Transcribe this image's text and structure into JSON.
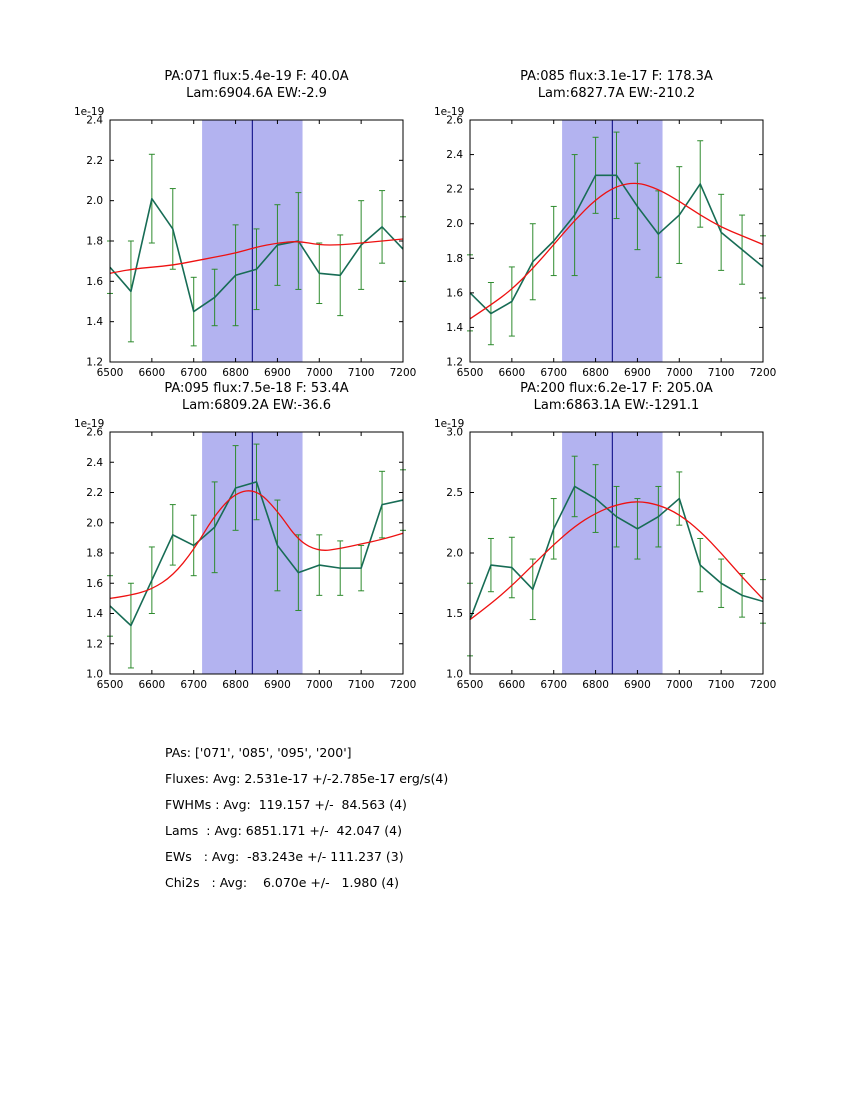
{
  "figure": {
    "background": "#ffffff",
    "band_color": "#b3b3f0",
    "band_range": [
      6720,
      6960
    ],
    "centroid_line_x": 6840,
    "centroid_line_color": "#000080",
    "data_line_color": "#176c55",
    "errorbar_color": "#2e8b2e",
    "fit_line_color": "#ee1111",
    "axis_color": "#000000"
  },
  "chart_data": [
    {
      "type": "line",
      "title_line1": "PA:071 flux:5.4e-19 F: 40.0A",
      "title_line2": "Lam:6904.6A EW:-2.9",
      "y_offset_label": "1e-19",
      "xlim": [
        6500,
        7200
      ],
      "ylim": [
        1.2,
        2.4
      ],
      "xticks": [
        6500,
        6600,
        6700,
        6800,
        6900,
        7000,
        7100,
        7200
      ],
      "yticks": [
        1.2,
        1.4,
        1.6,
        1.8,
        2.0,
        2.2,
        2.4
      ],
      "x": [
        6500,
        6550,
        6600,
        6650,
        6700,
        6750,
        6800,
        6850,
        6900,
        6950,
        7000,
        7050,
        7100,
        7150,
        7200
      ],
      "y": [
        1.67,
        1.55,
        2.01,
        1.86,
        1.45,
        1.52,
        1.63,
        1.66,
        1.78,
        1.8,
        1.64,
        1.63,
        1.78,
        1.87,
        1.76
      ],
      "yerr": [
        0.13,
        0.25,
        0.22,
        0.2,
        0.17,
        0.14,
        0.25,
        0.2,
        0.2,
        0.24,
        0.15,
        0.2,
        0.22,
        0.18,
        0.16
      ],
      "fit_y": [
        1.64,
        1.66,
        1.67,
        1.68,
        1.7,
        1.72,
        1.74,
        1.77,
        1.79,
        1.8,
        1.78,
        1.78,
        1.79,
        1.8,
        1.81
      ]
    },
    {
      "type": "line",
      "title_line1": "PA:085 flux:3.1e-17 F: 178.3A",
      "title_line2": "Lam:6827.7A EW:-210.2",
      "y_offset_label": "1e-19",
      "xlim": [
        6500,
        7200
      ],
      "ylim": [
        1.2,
        2.6
      ],
      "xticks": [
        6500,
        6600,
        6700,
        6800,
        6900,
        7000,
        7100,
        7200
      ],
      "yticks": [
        1.2,
        1.4,
        1.6,
        1.8,
        2.0,
        2.2,
        2.4,
        2.6
      ],
      "x": [
        6500,
        6550,
        6600,
        6650,
        6700,
        6750,
        6800,
        6850,
        6900,
        6950,
        7000,
        7050,
        7100,
        7150,
        7200
      ],
      "y": [
        1.6,
        1.48,
        1.55,
        1.78,
        1.9,
        2.05,
        2.28,
        2.28,
        2.1,
        1.94,
        2.05,
        2.23,
        1.95,
        1.85,
        1.75
      ],
      "yerr": [
        0.22,
        0.18,
        0.2,
        0.22,
        0.2,
        0.35,
        0.22,
        0.25,
        0.25,
        0.25,
        0.28,
        0.25,
        0.22,
        0.2,
        0.18
      ],
      "fit_y": [
        1.45,
        1.53,
        1.62,
        1.74,
        1.88,
        2.02,
        2.14,
        2.22,
        2.24,
        2.2,
        2.13,
        2.05,
        1.98,
        1.93,
        1.88
      ]
    },
    {
      "type": "line",
      "title_line1": "PA:095 flux:7.5e-18 F: 53.4A",
      "title_line2": "Lam:6809.2A EW:-36.6",
      "y_offset_label": "1e-19",
      "xlim": [
        6500,
        7200
      ],
      "ylim": [
        1.0,
        2.6
      ],
      "xticks": [
        6500,
        6600,
        6700,
        6800,
        6900,
        7000,
        7100,
        7200
      ],
      "yticks": [
        1.0,
        1.2,
        1.4,
        1.6,
        1.8,
        2.0,
        2.2,
        2.4,
        2.6
      ],
      "x": [
        6500,
        6550,
        6600,
        6650,
        6700,
        6750,
        6800,
        6850,
        6900,
        6950,
        7000,
        7050,
        7100,
        7150,
        7200
      ],
      "y": [
        1.45,
        1.32,
        1.62,
        1.92,
        1.85,
        1.97,
        2.23,
        2.27,
        1.85,
        1.67,
        1.72,
        1.7,
        1.7,
        2.12,
        2.15
      ],
      "yerr": [
        0.2,
        0.28,
        0.22,
        0.2,
        0.2,
        0.3,
        0.28,
        0.25,
        0.3,
        0.25,
        0.2,
        0.18,
        0.15,
        0.22,
        0.2
      ],
      "fit_y": [
        1.5,
        1.52,
        1.56,
        1.65,
        1.82,
        2.05,
        2.2,
        2.22,
        2.08,
        1.88,
        1.81,
        1.83,
        1.86,
        1.89,
        1.93
      ]
    },
    {
      "type": "line",
      "title_line1": "PA:200 flux:6.2e-17 F: 205.0A",
      "title_line2": "Lam:6863.1A EW:-1291.1",
      "y_offset_label": "1e-19",
      "xlim": [
        6500,
        7200
      ],
      "ylim": [
        1.0,
        3.0
      ],
      "xticks": [
        6500,
        6600,
        6700,
        6800,
        6900,
        7000,
        7100,
        7200
      ],
      "yticks": [
        1.0,
        1.5,
        2.0,
        2.5,
        3.0
      ],
      "x": [
        6500,
        6550,
        6600,
        6650,
        6700,
        6750,
        6800,
        6850,
        6900,
        6950,
        7000,
        7050,
        7100,
        7150,
        7200
      ],
      "y": [
        1.45,
        1.9,
        1.88,
        1.7,
        2.2,
        2.55,
        2.45,
        2.3,
        2.2,
        2.3,
        2.45,
        1.9,
        1.75,
        1.65,
        1.6
      ],
      "yerr": [
        0.3,
        0.22,
        0.25,
        0.25,
        0.25,
        0.25,
        0.28,
        0.25,
        0.25,
        0.25,
        0.22,
        0.22,
        0.2,
        0.18,
        0.18
      ],
      "fit_y": [
        1.45,
        1.58,
        1.73,
        1.9,
        2.07,
        2.22,
        2.33,
        2.4,
        2.43,
        2.4,
        2.32,
        2.18,
        2.0,
        1.8,
        1.62
      ]
    }
  ],
  "summary": {
    "lines": [
      "PAs: ['071', '085', '095', '200']",
      "Fluxes: Avg: 2.531e-17 +/-2.785e-17 erg/s(4)",
      "FWHMs : Avg:  119.157 +/-  84.563 (4)",
      "Lams  : Avg: 6851.171 +/-  42.047 (4)",
      "EWs   : Avg:  -83.243e +/- 111.237 (3)",
      "Chi2s   : Avg:    6.070e +/-   1.980 (4)"
    ]
  }
}
